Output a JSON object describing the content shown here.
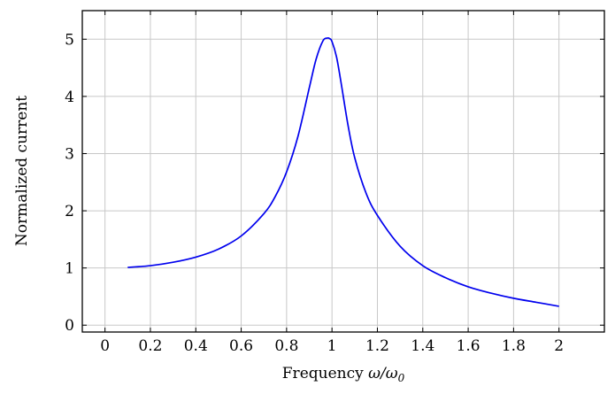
{
  "chart_data": {
    "type": "line",
    "title": "",
    "xlabel_prefix": "Frequency",
    "xlabel_symbol": "ω/ω",
    "xlabel_subscript": "0",
    "ylabel": "Normalized current",
    "xlim": [
      -0.1,
      2.2
    ],
    "ylim": [
      -0.12,
      5.5
    ],
    "grid": true,
    "legend": "none",
    "line_color": "#0000ee",
    "x_ticks": [
      0,
      0.2,
      0.4,
      0.6,
      0.8,
      1,
      1.2,
      1.4,
      1.6,
      1.8,
      2
    ],
    "x_tick_labels": [
      "0",
      "0.2",
      "0.4",
      "0.6",
      "0.8",
      "1",
      "1.2",
      "1.4",
      "1.6",
      "1.8",
      "2"
    ],
    "y_ticks": [
      0,
      1,
      2,
      3,
      4,
      5
    ],
    "y_tick_labels": [
      "0",
      "1",
      "2",
      "3",
      "4",
      "5"
    ],
    "series": [
      {
        "x": [
          0.1,
          0.2,
          0.3,
          0.4,
          0.5,
          0.6,
          0.7,
          0.75,
          0.8,
          0.85,
          0.9,
          0.93,
          0.96,
          0.98,
          0.99,
          1.0,
          1.02,
          1.04,
          1.07,
          1.1,
          1.15,
          1.2,
          1.3,
          1.4,
          1.5,
          1.6,
          1.7,
          1.8,
          1.9,
          2.0
        ],
        "y": [
          1.01,
          1.04,
          1.1,
          1.19,
          1.33,
          1.56,
          1.95,
          2.25,
          2.68,
          3.3,
          4.15,
          4.65,
          4.97,
          5.02,
          5.01,
          4.96,
          4.69,
          4.24,
          3.51,
          2.93,
          2.31,
          1.92,
          1.38,
          1.04,
          0.83,
          0.67,
          0.56,
          0.47,
          0.4,
          0.33
        ]
      }
    ]
  }
}
